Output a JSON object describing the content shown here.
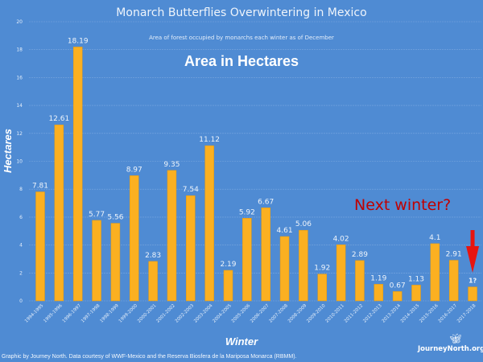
{
  "chart_data": {
    "type": "bar",
    "title": "Monarch Butterflies Overwintering in Mexico",
    "subtitle": "Area of forest occupied by monarchs each winter as of December",
    "banner": "Area in Hectares",
    "xlabel": "Winter",
    "ylabel": "Hectares",
    "ylim": [
      0,
      20
    ],
    "yticks": [
      0,
      2,
      4,
      6,
      8,
      10,
      12,
      14,
      16,
      18,
      20
    ],
    "grid": true,
    "categories": [
      "1994-1995",
      "1995-1996",
      "1996-1997",
      "1997-1998",
      "1998-1999",
      "1999-2000",
      "2000-2001",
      "2001-2002",
      "2002-2003",
      "2003-2004",
      "2004-2005",
      "2005-2006",
      "2006-2007",
      "2007-2008",
      "2008-2009",
      "2009-2010",
      "2010-2011",
      "2011-2012",
      "2012-2013",
      "2013-2014",
      "2014-2015",
      "2015-2016",
      "2016-2017",
      "2017-2018"
    ],
    "values": [
      7.81,
      12.61,
      18.19,
      5.77,
      5.56,
      8.97,
      2.83,
      9.35,
      7.54,
      11.12,
      2.19,
      5.92,
      6.67,
      4.61,
      5.06,
      1.92,
      4.02,
      2.89,
      1.19,
      0.67,
      1.13,
      4.1,
      2.91,
      1
    ],
    "data_labels": [
      "7.81",
      "12.61",
      "18.19",
      "5.77",
      "5.56",
      "8.97",
      "2.83",
      "9.35",
      "7.54",
      "11.12",
      "2.19",
      "5.92",
      "6.67",
      "4.61",
      "5.06",
      "1.92",
      "4.02",
      "2.89",
      "1.19",
      "0.67",
      "1.13",
      "4.1",
      "2.91",
      "1?"
    ],
    "annotation": "Next winter?",
    "colors": {
      "background": "#4f8bd3",
      "bar": "#fbb021",
      "annotation": "#c00000",
      "arrow": "#e8140f"
    }
  },
  "footer": {
    "credit": "Graphic by Journey North. Data courtesy of WWF-Mexico and the Reserva Biosfera de la Mariposa Monarca (RBMM).",
    "logo": "JourneyNorth.org",
    "logo_icon": "butterfly-icon"
  }
}
